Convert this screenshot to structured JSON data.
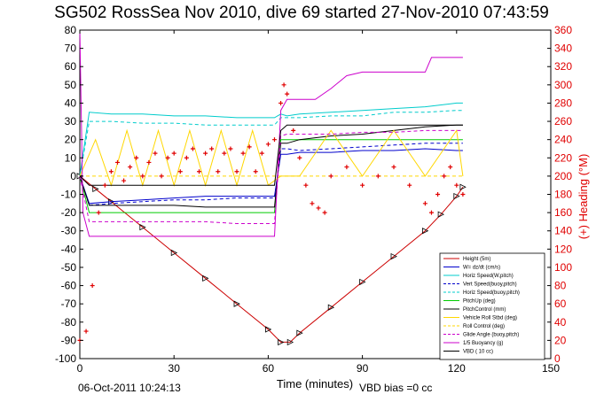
{
  "chart_data": {
    "type": "line",
    "title": "SG502 RossSea Nov 2010, dive 69 started 27-Nov-2010 07:43:59",
    "xlabel": "Time (minutes)",
    "ylabel": "",
    "ylabel_right": "(+) Heading (°M)",
    "xlim": [
      0,
      150
    ],
    "ylim": [
      -100,
      80
    ],
    "ylim_right": [
      0,
      360
    ],
    "x_ticks": [
      "0",
      "30",
      "60",
      "90",
      "120",
      "150"
    ],
    "y_ticks": [
      "80",
      "70",
      "60",
      "50",
      "40",
      "30",
      "20",
      "10",
      "0",
      "-10",
      "-20",
      "-30",
      "-40",
      "-50",
      "-60",
      "-70",
      "-80",
      "-90",
      "-100"
    ],
    "y_ticks_right": [
      "360",
      "340",
      "320",
      "300",
      "280",
      "260",
      "240",
      "220",
      "200",
      "180",
      "160",
      "140",
      "120",
      "100",
      "80",
      "60",
      "40",
      "20",
      "0"
    ],
    "footer_date": "06-Oct-2011 10:24:13",
    "footer_note": "VBD bias =0 cc",
    "grid": false,
    "legend_position": "bottom-right",
    "series": [
      {
        "name": "Height (5m)",
        "color": "#cc0000",
        "style": "solid",
        "x": [
          0,
          5,
          10,
          20,
          30,
          40,
          50,
          60,
          64,
          67,
          70,
          80,
          90,
          100,
          110,
          115,
          120,
          122
        ],
        "y": [
          0,
          -7,
          -14,
          -28,
          -42,
          -56,
          -70,
          -84,
          -91,
          -91,
          -86,
          -72,
          -58,
          -44,
          -30,
          -21,
          -11,
          -6
        ]
      },
      {
        "name": "W= dz/dt (cm/s)",
        "color": "#0000cc",
        "style": "solid",
        "x": [
          0,
          3,
          10,
          20,
          30,
          40,
          50,
          60,
          62,
          64,
          66,
          70,
          80,
          90,
          100,
          110,
          120,
          122
        ],
        "y": [
          0,
          -15,
          -14,
          -13,
          -12,
          -11,
          -11,
          -11,
          -11,
          12,
          12,
          13,
          13,
          14,
          14,
          15,
          14,
          14
        ]
      },
      {
        "name": "Horiz Speed(W,pitch)",
        "color": "#00cccc",
        "style": "solid",
        "x": [
          0,
          3,
          10,
          20,
          30,
          40,
          50,
          60,
          62,
          64,
          66,
          70,
          80,
          90,
          100,
          110,
          120,
          122
        ],
        "y": [
          0,
          35,
          34,
          34,
          33,
          33,
          32,
          32,
          32,
          34,
          33,
          34,
          35,
          36,
          37,
          38,
          40,
          40
        ]
      },
      {
        "name": "Vert Speed(buoy,pitch)",
        "color": "#0000cc",
        "style": "dashed",
        "x": [
          0,
          3,
          10,
          20,
          30,
          40,
          50,
          60,
          62,
          64,
          66,
          70,
          80,
          90,
          100,
          110,
          120,
          122
        ],
        "y": [
          0,
          -16,
          -15,
          -14,
          -13,
          -13,
          -12,
          -12,
          -12,
          15,
          15,
          14,
          15,
          16,
          17,
          18,
          18,
          18
        ]
      },
      {
        "name": "Horiz Speed(buoy,pitch)",
        "color": "#00cccc",
        "style": "dashed",
        "x": [
          0,
          3,
          10,
          20,
          30,
          40,
          50,
          60,
          62,
          64,
          66,
          70,
          80,
          90,
          100,
          110,
          120,
          122
        ],
        "y": [
          0,
          30,
          30,
          29,
          29,
          28,
          28,
          28,
          28,
          32,
          32,
          32,
          33,
          33,
          35,
          35,
          36,
          36
        ]
      },
      {
        "name": "PitchUp (deg)",
        "color": "#00cc00",
        "style": "solid",
        "x": [
          0,
          3,
          10,
          20,
          30,
          40,
          50,
          60,
          62,
          64,
          66,
          70,
          80,
          90,
          100,
          110,
          120,
          122
        ],
        "y": [
          0,
          -20,
          -20,
          -20,
          -20,
          -20,
          -20,
          -20,
          -20,
          20,
          20,
          20,
          20,
          20,
          20,
          20,
          20,
          20
        ]
      },
      {
        "name": "PitchControl (mm)",
        "color": "#000000",
        "style": "solid",
        "x": [
          0,
          3,
          10,
          20,
          30,
          40,
          50,
          60,
          62,
          64,
          66,
          70,
          80,
          90,
          100,
          110,
          120,
          122
        ],
        "y": [
          0,
          -16,
          -16,
          -16,
          -16,
          -17,
          -17,
          -17,
          -17,
          18,
          18,
          20,
          22,
          23,
          25,
          27,
          28,
          28
        ]
      },
      {
        "name": "Vehicle Roll Stbd (deg)",
        "color": "#ffd700",
        "style": "solid",
        "x": [
          0,
          5,
          10,
          15,
          20,
          25,
          30,
          35,
          40,
          45,
          50,
          55,
          60,
          64,
          70,
          80,
          90,
          100,
          110,
          120,
          122
        ],
        "y": [
          0,
          20,
          -5,
          25,
          -5,
          25,
          -5,
          25,
          -5,
          25,
          -5,
          25,
          -5,
          0,
          0,
          25,
          0,
          25,
          0,
          25,
          0
        ]
      },
      {
        "name": "Roll Control (deg)",
        "color": "#ffd700",
        "style": "dashed",
        "x": [
          0,
          10,
          20,
          30,
          40,
          50,
          60,
          64,
          70,
          80,
          90,
          100,
          110,
          120,
          122
        ],
        "y": [
          0,
          0,
          0,
          0,
          0,
          0,
          0,
          0,
          0,
          0,
          0,
          0,
          0,
          0,
          0
        ]
      },
      {
        "name": "Glide Angle (buoy,pitch)",
        "color": "#cc00cc",
        "style": "dashed",
        "x": [
          0,
          3,
          10,
          20,
          30,
          40,
          50,
          60,
          62,
          64,
          66,
          70,
          80,
          90,
          100,
          110,
          120,
          122
        ],
        "y": [
          0,
          -25,
          -25,
          -25,
          -25,
          -25,
          -26,
          -26,
          -26,
          22,
          23,
          23,
          23,
          24,
          24,
          25,
          25,
          25
        ]
      },
      {
        "name": "1/5 Buoyancy (g)",
        "color": "#cc00cc",
        "style": "solid",
        "x": [
          0,
          1,
          3,
          10,
          20,
          30,
          40,
          50,
          60,
          62,
          64,
          66,
          75,
          80,
          85,
          90,
          95,
          100,
          110,
          112,
          120,
          122
        ],
        "y": [
          80,
          -20,
          -33,
          -33,
          -33,
          -33,
          -33,
          -33,
          -33,
          -33,
          36,
          42,
          42,
          48,
          55,
          57,
          57,
          57,
          57,
          65,
          65,
          65
        ]
      },
      {
        "name": "VBD ( 10 cc)",
        "color": "#000000",
        "style": "solid",
        "x": [
          0,
          3,
          10,
          60,
          62,
          64,
          66,
          70,
          80,
          90,
          100,
          110,
          120,
          122
        ],
        "y": [
          0,
          -5,
          -5,
          -5,
          -5,
          25,
          28,
          28,
          28,
          28,
          28,
          28,
          28,
          28
        ]
      }
    ],
    "heading_series": {
      "name": "Heading",
      "color": "#e00000",
      "axis": "right",
      "x": [
        0,
        2,
        4,
        6,
        8,
        10,
        12,
        14,
        16,
        18,
        20,
        22,
        24,
        26,
        28,
        30,
        32,
        34,
        36,
        38,
        40,
        42,
        44,
        46,
        48,
        50,
        52,
        54,
        56,
        58,
        60,
        62,
        64,
        65,
        66,
        68,
        70,
        72,
        74,
        76,
        78,
        80,
        85,
        90,
        95,
        100,
        105,
        110,
        112,
        114,
        116,
        118,
        120,
        122
      ],
      "y": [
        20,
        30,
        80,
        160,
        190,
        205,
        215,
        195,
        210,
        220,
        200,
        215,
        225,
        200,
        220,
        225,
        205,
        220,
        230,
        205,
        225,
        230,
        205,
        225,
        230,
        205,
        225,
        232,
        205,
        225,
        235,
        240,
        280,
        300,
        290,
        250,
        220,
        190,
        170,
        165,
        160,
        200,
        210,
        190,
        200,
        210,
        190,
        170,
        160,
        180,
        200,
        210,
        190,
        180
      ]
    }
  }
}
